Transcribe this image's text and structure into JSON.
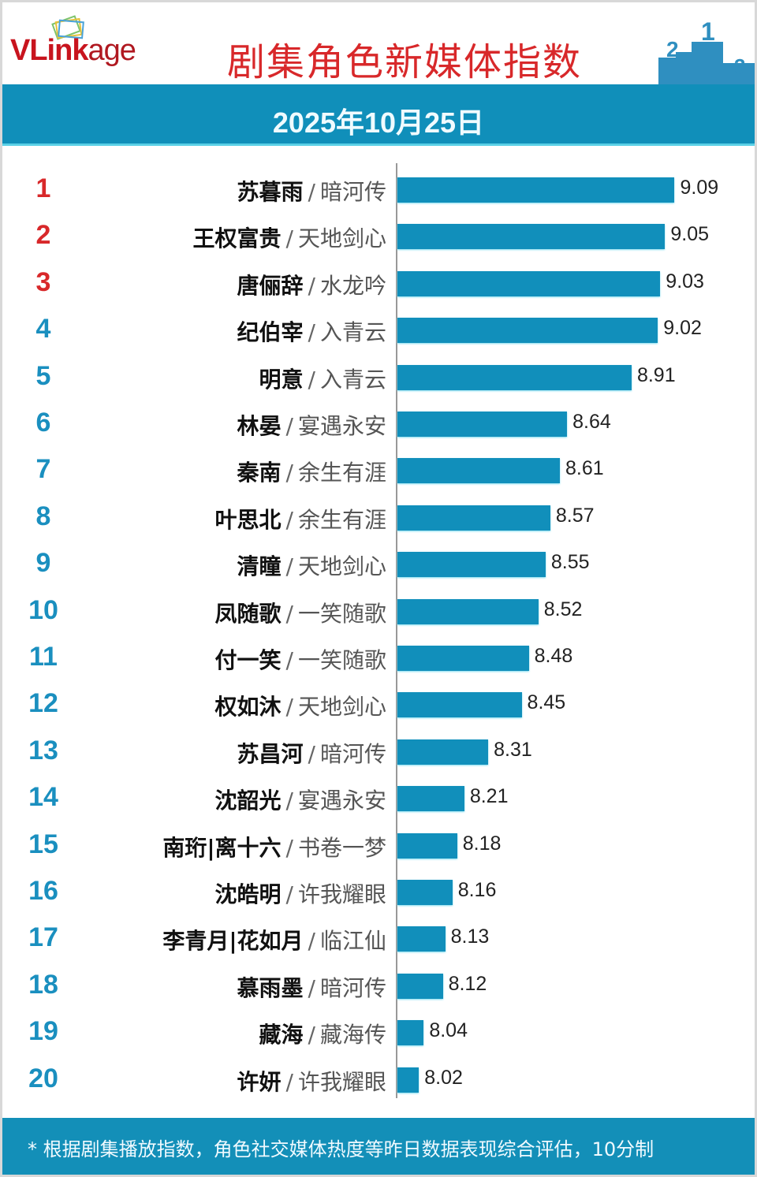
{
  "header": {
    "logo": {
      "bold": "VLink",
      "light": "age"
    },
    "title": "剧集角色新媒体指数",
    "podium": [
      "2",
      "1",
      "3"
    ]
  },
  "date": "2025年10月25日",
  "colors": {
    "bar": "#118fbb",
    "band": "#108fba",
    "top3_rank": "#d8282a",
    "rank": "#1a8fbf",
    "title": "#d8282a"
  },
  "chart_data": {
    "type": "bar",
    "orientation": "horizontal",
    "title": "剧集角色新媒体指数",
    "subtitle": "2025年10月25日",
    "xlabel": "",
    "ylabel": "",
    "categories": [
      "苏暮雨 / 暗河传",
      "王权富贵 / 天地剑心",
      "唐俪辞 / 水龙吟",
      "纪伯宰 / 入青云",
      "明意 / 入青云",
      "林晏 / 宴遇永安",
      "秦南 / 余生有涯",
      "叶思北 / 余生有涯",
      "清瞳 / 天地剑心",
      "凤随歌 / 一笑随歌",
      "付一笑 / 一笑随歌",
      "权如沐 / 天地剑心",
      "苏昌河 / 暗河传",
      "沈韶光 / 宴遇永安",
      "南珩|离十六 / 书卷一梦",
      "沈皓明 / 许我耀眼",
      "李青月|花如月 / 临江仙",
      "慕雨墨 / 暗河传",
      "藏海 / 藏海传",
      "许妍 / 许我耀眼"
    ],
    "values": [
      9.09,
      9.05,
      9.03,
      9.02,
      8.91,
      8.64,
      8.61,
      8.57,
      8.55,
      8.52,
      8.48,
      8.45,
      8.31,
      8.21,
      8.18,
      8.16,
      8.13,
      8.12,
      8.04,
      8.02
    ],
    "xlim": [
      7.93,
      9.2
    ],
    "grid": false,
    "legend": "none"
  },
  "rows": [
    {
      "rank": "1",
      "name": "苏暮雨",
      "show": "暗河传",
      "value": "9.09",
      "v": 9.09
    },
    {
      "rank": "2",
      "name": "王权富贵",
      "show": "天地剑心",
      "value": "9.05",
      "v": 9.05
    },
    {
      "rank": "3",
      "name": "唐俪辞",
      "show": "水龙吟",
      "value": "9.03",
      "v": 9.03
    },
    {
      "rank": "4",
      "name": "纪伯宰",
      "show": "入青云",
      "value": "9.02",
      "v": 9.02
    },
    {
      "rank": "5",
      "name": "明意",
      "show": "入青云",
      "value": "8.91",
      "v": 8.91
    },
    {
      "rank": "6",
      "name": "林晏",
      "show": "宴遇永安",
      "value": "8.64",
      "v": 8.64
    },
    {
      "rank": "7",
      "name": "秦南",
      "show": "余生有涯",
      "value": "8.61",
      "v": 8.61
    },
    {
      "rank": "8",
      "name": "叶思北",
      "show": "余生有涯",
      "value": "8.57",
      "v": 8.57
    },
    {
      "rank": "9",
      "name": "清瞳",
      "show": "天地剑心",
      "value": "8.55",
      "v": 8.55
    },
    {
      "rank": "10",
      "name": "凤随歌",
      "show": "一笑随歌",
      "value": "8.52",
      "v": 8.52
    },
    {
      "rank": "11",
      "name": "付一笑",
      "show": "一笑随歌",
      "value": "8.48",
      "v": 8.48
    },
    {
      "rank": "12",
      "name": "权如沐",
      "show": "天地剑心",
      "value": "8.45",
      "v": 8.45
    },
    {
      "rank": "13",
      "name": "苏昌河",
      "show": "暗河传",
      "value": "8.31",
      "v": 8.31
    },
    {
      "rank": "14",
      "name": "沈韶光",
      "show": "宴遇永安",
      "value": "8.21",
      "v": 8.21
    },
    {
      "rank": "15",
      "name": "南珩|离十六",
      "show": "书卷一梦",
      "value": "8.18",
      "v": 8.18
    },
    {
      "rank": "16",
      "name": "沈皓明",
      "show": "许我耀眼",
      "value": "8.16",
      "v": 8.16
    },
    {
      "rank": "17",
      "name": "李青月|花如月",
      "show": "临江仙",
      "value": "8.13",
      "v": 8.13
    },
    {
      "rank": "18",
      "name": "慕雨墨",
      "show": "暗河传",
      "value": "8.12",
      "v": 8.12
    },
    {
      "rank": "19",
      "name": "藏海",
      "show": "藏海传",
      "value": "8.04",
      "v": 8.04
    },
    {
      "rank": "20",
      "name": "许妍",
      "show": "许我耀眼",
      "value": "8.02",
      "v": 8.02
    }
  ],
  "separator": "/",
  "footer": {
    "note": "* 根据剧集播放指数，角色社交媒体热度等昨日数据表现综合评估，10分制"
  }
}
